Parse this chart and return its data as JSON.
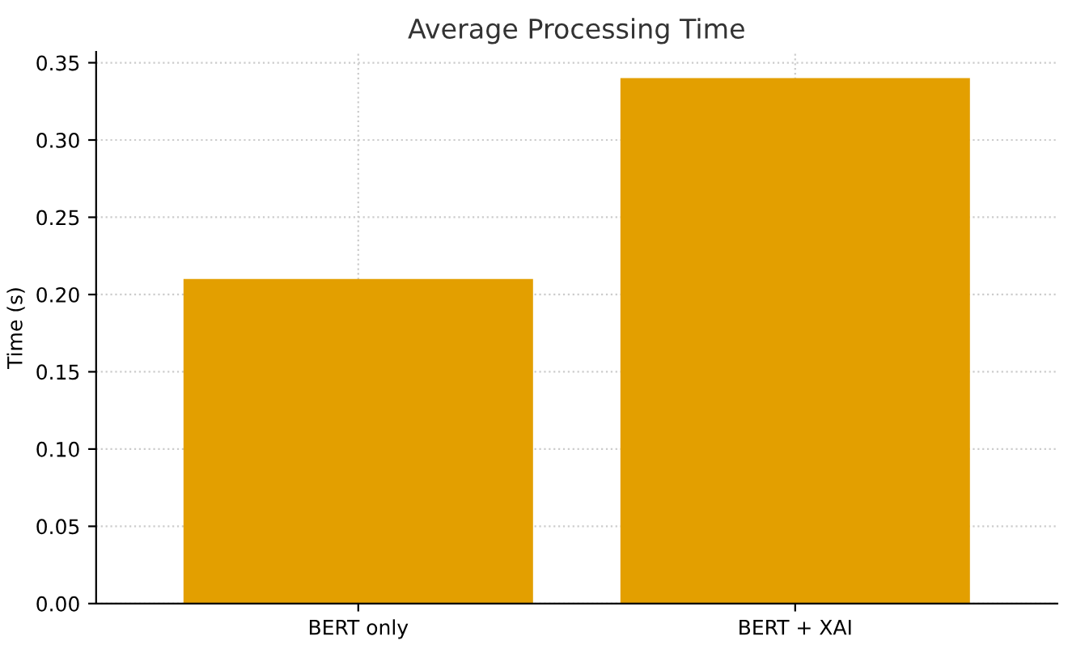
{
  "chart_data": {
    "type": "bar",
    "title": "Average Processing Time",
    "ylabel": "Time (s)",
    "categories": [
      "BERT only",
      "BERT + XAI"
    ],
    "values": [
      0.21,
      0.34
    ],
    "color": "#e39f00",
    "ylim": [
      0,
      0.357
    ],
    "yticks": [
      {
        "value": 0,
        "label": "0.00"
      },
      0.05,
      {
        "value": 0.1,
        "label": "0.10"
      },
      0.15,
      {
        "value": 0.2,
        "label": "0.20"
      },
      0.25,
      {
        "value": 0.3,
        "label": "0.30"
      },
      0.35
    ],
    "grid": true
  }
}
